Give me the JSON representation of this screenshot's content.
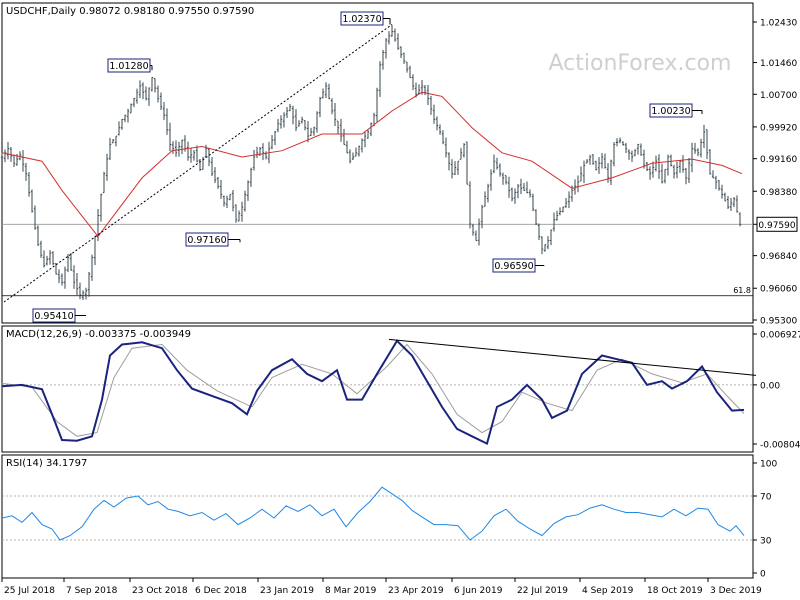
{
  "chart_data": {
    "type": "line",
    "symbol": "USDCHF",
    "timeframe": "Daily",
    "header_text": "USDCHF,Daily  0.98072 0.98180 0.97550 0.97590",
    "ohlc": {
      "open": "0.98072",
      "high": "0.98180",
      "low": "0.97550",
      "close": "0.97590"
    },
    "watermark": "ActionForex.com",
    "x_tick_labels": [
      "25 Jul 2018",
      "7 Sep 2018",
      "23 Oct 2018",
      "6 Dec 2018",
      "23 Jan 2019",
      "8 Mar 2019",
      "23 Apr 2019",
      "6 Jun 2019",
      "22 Jul 2019",
      "4 Sep 2019",
      "18 Oct 2019",
      "3 Dec 2019"
    ],
    "price": {
      "y_ticks": [
        "1.02430",
        "1.01460",
        "1.00700",
        "0.99920",
        "0.99160",
        "0.98380",
        "0.97590",
        "0.96840",
        "0.96060",
        "0.95300"
      ],
      "current_price": "0.97590",
      "fib_level_label": "61.8",
      "fib_level_value": 0.9588,
      "annotations": [
        {
          "label": "1.02370",
          "value": 1.0237
        },
        {
          "label": "1.01280",
          "value": 1.0128
        },
        {
          "label": "0.97160",
          "value": 0.9716
        },
        {
          "label": "0.95410",
          "value": 0.9541
        },
        {
          "label": "0.96590",
          "value": 0.9659
        },
        {
          "label": "1.00230",
          "value": 1.0023
        }
      ],
      "close_path": [
        [
          0,
          0.992
        ],
        [
          6,
          0.994
        ],
        [
          12,
          0.9905
        ],
        [
          18,
          0.9925
        ],
        [
          24,
          0.988
        ],
        [
          30,
          0.979
        ],
        [
          36,
          0.971
        ],
        [
          42,
          0.966
        ],
        [
          48,
          0.969
        ],
        [
          54,
          0.964
        ],
        [
          60,
          0.962
        ],
        [
          66,
          0.968
        ],
        [
          72,
          0.962
        ],
        [
          78,
          0.959
        ],
        [
          84,
          0.96
        ],
        [
          90,
          0.968
        ],
        [
          96,
          0.978
        ],
        [
          102,
          0.988
        ],
        [
          108,
          0.995
        ],
        [
          114,
          0.997
        ],
        [
          120,
          1.001
        ],
        [
          126,
          1.003
        ],
        [
          132,
          1.006
        ],
        [
          138,
          1.009
        ],
        [
          144,
          1.006
        ],
        [
          150,
          1.011
        ],
        [
          156,
          1.006
        ],
        [
          162,
          1.002
        ],
        [
          168,
          0.995
        ],
        [
          174,
          0.993
        ],
        [
          180,
          0.996
        ],
        [
          186,
          0.992
        ],
        [
          192,
          0.993
        ],
        [
          198,
          0.989
        ],
        [
          204,
          0.994
        ],
        [
          210,
          0.988
        ],
        [
          216,
          0.985
        ],
        [
          222,
          0.981
        ],
        [
          228,
          0.983
        ],
        [
          234,
          0.977
        ],
        [
          240,
          0.98
        ],
        [
          246,
          0.986
        ],
        [
          252,
          0.992
        ],
        [
          258,
          0.994
        ],
        [
          264,
          0.992
        ],
        [
          270,
          0.996
        ],
        [
          276,
          1.0
        ],
        [
          282,
          1.002
        ],
        [
          288,
          1.004
        ],
        [
          294,
          0.999
        ],
        [
          300,
          1.001
        ],
        [
          306,
          0.997
        ],
        [
          312,
          0.999
        ],
        [
          318,
          1.006
        ],
        [
          324,
          1.009
        ],
        [
          330,
          1.003
        ],
        [
          336,
          0.999
        ],
        [
          342,
          0.995
        ],
        [
          348,
          0.991
        ],
        [
          354,
          0.993
        ],
        [
          360,
          0.996
        ],
        [
          366,
          0.998
        ],
        [
          372,
          1.002
        ],
        [
          378,
          1.014
        ],
        [
          384,
          1.02
        ],
        [
          390,
          1.022
        ],
        [
          396,
          1.018
        ],
        [
          402,
          1.015
        ],
        [
          408,
          1.011
        ],
        [
          414,
          1.007
        ],
        [
          420,
          1.009
        ],
        [
          426,
          1.006
        ],
        [
          432,
          1.001
        ],
        [
          438,
          0.998
        ],
        [
          444,
          0.993
        ],
        [
          450,
          0.988
        ],
        [
          456,
          0.991
        ],
        [
          462,
          0.995
        ],
        [
          468,
          0.976
        ],
        [
          474,
          0.972
        ],
        [
          480,
          0.98
        ],
        [
          486,
          0.985
        ],
        [
          492,
          0.991
        ],
        [
          498,
          0.988
        ],
        [
          504,
          0.986
        ],
        [
          510,
          0.982
        ],
        [
          516,
          0.985
        ],
        [
          522,
          0.984
        ],
        [
          528,
          0.983
        ],
        [
          534,
          0.976
        ],
        [
          540,
          0.97
        ],
        [
          546,
          0.972
        ],
        [
          552,
          0.977
        ],
        [
          558,
          0.979
        ],
        [
          564,
          0.981
        ],
        [
          570,
          0.984
        ],
        [
          576,
          0.986
        ],
        [
          582,
          0.99
        ],
        [
          588,
          0.992
        ],
        [
          594,
          0.989
        ],
        [
          600,
          0.992
        ],
        [
          606,
          0.987
        ],
        [
          612,
          0.995
        ],
        [
          618,
          0.996
        ],
        [
          624,
          0.994
        ],
        [
          630,
          0.992
        ],
        [
          636,
          0.995
        ],
        [
          642,
          0.99
        ],
        [
          648,
          0.988
        ],
        [
          654,
          0.991
        ],
        [
          660,
          0.986
        ],
        [
          666,
          0.992
        ],
        [
          672,
          0.988
        ],
        [
          678,
          0.991
        ],
        [
          684,
          0.987
        ],
        [
          690,
          0.994
        ],
        [
          696,
          0.993
        ],
        [
          702,
          0.998
        ],
        [
          708,
          0.988
        ],
        [
          714,
          0.986
        ],
        [
          720,
          0.983
        ],
        [
          726,
          0.98
        ],
        [
          732,
          0.982
        ],
        [
          738,
          0.9759
        ]
      ],
      "ma_path": [
        [
          0,
          0.993
        ],
        [
          40,
          0.991
        ],
        [
          60,
          0.984
        ],
        [
          96,
          0.973
        ],
        [
          140,
          0.987
        ],
        [
          170,
          0.9935
        ],
        [
          200,
          0.9945
        ],
        [
          240,
          0.992
        ],
        [
          280,
          0.9935
        ],
        [
          320,
          0.9975
        ],
        [
          360,
          0.9975
        ],
        [
          390,
          1.003
        ],
        [
          420,
          1.0075
        ],
        [
          440,
          1.0065
        ],
        [
          470,
          0.999
        ],
        [
          500,
          0.993
        ],
        [
          530,
          0.991
        ],
        [
          570,
          0.9845
        ],
        [
          610,
          0.987
        ],
        [
          650,
          0.9905
        ],
        [
          690,
          0.9915
        ],
        [
          720,
          0.99
        ],
        [
          740,
          0.988
        ]
      ],
      "trendline": {
        "from": [
          2,
          0.9573
        ],
        "to": [
          390,
          1.0237
        ]
      }
    },
    "macd": {
      "label": "MACD(12,26,9) -0.003375 -0.003949",
      "y_ticks": [
        "0.006927",
        "0.00",
        "-0.008049"
      ],
      "main_path": [
        [
          0,
          -0.0002
        ],
        [
          20,
          0.0
        ],
        [
          40,
          -0.0006
        ],
        [
          50,
          -0.004
        ],
        [
          60,
          -0.0075
        ],
        [
          75,
          -0.0076
        ],
        [
          90,
          -0.007
        ],
        [
          100,
          -0.002
        ],
        [
          108,
          0.004
        ],
        [
          120,
          0.0055
        ],
        [
          140,
          0.0058
        ],
        [
          160,
          0.005
        ],
        [
          175,
          0.002
        ],
        [
          190,
          -0.0005
        ],
        [
          210,
          -0.0015
        ],
        [
          230,
          -0.0025
        ],
        [
          245,
          -0.004
        ],
        [
          255,
          -0.0008
        ],
        [
          270,
          0.002
        ],
        [
          290,
          0.0035
        ],
        [
          305,
          0.0015
        ],
        [
          320,
          0.0005
        ],
        [
          335,
          0.002
        ],
        [
          345,
          -0.002
        ],
        [
          360,
          -0.002
        ],
        [
          375,
          0.0015
        ],
        [
          395,
          0.006
        ],
        [
          410,
          0.004
        ],
        [
          425,
          0.0005
        ],
        [
          440,
          -0.003
        ],
        [
          455,
          -0.006
        ],
        [
          470,
          -0.007
        ],
        [
          485,
          -0.008
        ],
        [
          495,
          -0.003
        ],
        [
          510,
          -0.002
        ],
        [
          525,
          0.0
        ],
        [
          540,
          -0.002
        ],
        [
          550,
          -0.0045
        ],
        [
          565,
          -0.0035
        ],
        [
          580,
          0.0015
        ],
        [
          600,
          0.004
        ],
        [
          615,
          0.0035
        ],
        [
          630,
          0.003
        ],
        [
          645,
          0.0
        ],
        [
          660,
          0.0005
        ],
        [
          670,
          -0.0005
        ],
        [
          685,
          0.0005
        ],
        [
          700,
          0.0025
        ],
        [
          715,
          -0.001
        ],
        [
          730,
          -0.0035
        ],
        [
          742,
          -0.0034
        ]
      ],
      "signal_path": [
        [
          0,
          0.0002
        ],
        [
          30,
          -0.0003
        ],
        [
          55,
          -0.005
        ],
        [
          75,
          -0.007
        ],
        [
          95,
          -0.0065
        ],
        [
          112,
          0.001
        ],
        [
          130,
          0.005
        ],
        [
          160,
          0.0055
        ],
        [
          185,
          0.002
        ],
        [
          215,
          -0.0008
        ],
        [
          250,
          -0.003
        ],
        [
          270,
          0.001
        ],
        [
          300,
          0.0028
        ],
        [
          330,
          0.0015
        ],
        [
          355,
          -0.0012
        ],
        [
          385,
          0.0025
        ],
        [
          405,
          0.0055
        ],
        [
          430,
          0.0015
        ],
        [
          455,
          -0.004
        ],
        [
          480,
          -0.0065
        ],
        [
          500,
          -0.005
        ],
        [
          520,
          -0.001
        ],
        [
          545,
          -0.0025
        ],
        [
          570,
          -0.0035
        ],
        [
          595,
          0.002
        ],
        [
          620,
          0.0035
        ],
        [
          650,
          0.0015
        ],
        [
          680,
          0.0003
        ],
        [
          705,
          0.0015
        ],
        [
          725,
          -0.0015
        ],
        [
          742,
          -0.0039
        ]
      ],
      "resistance_line": {
        "from": [
          387,
          0.0062
        ],
        "to": [
          754,
          0.0013
        ]
      }
    },
    "rsi": {
      "label": "RSI(14) 34.1797",
      "y_ticks": [
        "100",
        "70",
        "30",
        "0"
      ],
      "levels": [
        70,
        30
      ],
      "path": [
        [
          0,
          50
        ],
        [
          10,
          52
        ],
        [
          20,
          46
        ],
        [
          30,
          55
        ],
        [
          40,
          44
        ],
        [
          50,
          40
        ],
        [
          58,
          30
        ],
        [
          68,
          34
        ],
        [
          80,
          42
        ],
        [
          92,
          58
        ],
        [
          102,
          66
        ],
        [
          112,
          60
        ],
        [
          124,
          68
        ],
        [
          136,
          70
        ],
        [
          146,
          62
        ],
        [
          156,
          65
        ],
        [
          166,
          58
        ],
        [
          176,
          56
        ],
        [
          188,
          52
        ],
        [
          200,
          55
        ],
        [
          212,
          48
        ],
        [
          224,
          54
        ],
        [
          236,
          44
        ],
        [
          248,
          50
        ],
        [
          260,
          58
        ],
        [
          272,
          50
        ],
        [
          284,
          61
        ],
        [
          296,
          56
        ],
        [
          308,
          62
        ],
        [
          320,
          52
        ],
        [
          332,
          58
        ],
        [
          344,
          42
        ],
        [
          356,
          55
        ],
        [
          368,
          65
        ],
        [
          380,
          78
        ],
        [
          390,
          72
        ],
        [
          400,
          66
        ],
        [
          410,
          57
        ],
        [
          420,
          51
        ],
        [
          432,
          44
        ],
        [
          444,
          44
        ],
        [
          456,
          43
        ],
        [
          468,
          30
        ],
        [
          480,
          38
        ],
        [
          492,
          52
        ],
        [
          504,
          58
        ],
        [
          516,
          47
        ],
        [
          528,
          40
        ],
        [
          540,
          34
        ],
        [
          552,
          45
        ],
        [
          564,
          51
        ],
        [
          576,
          53
        ],
        [
          588,
          59
        ],
        [
          600,
          62
        ],
        [
          612,
          58
        ],
        [
          624,
          55
        ],
        [
          636,
          55
        ],
        [
          648,
          53
        ],
        [
          660,
          51
        ],
        [
          672,
          58
        ],
        [
          684,
          52
        ],
        [
          696,
          59
        ],
        [
          706,
          58
        ],
        [
          716,
          44
        ],
        [
          728,
          38
        ],
        [
          734,
          43
        ],
        [
          742,
          34
        ]
      ]
    }
  }
}
